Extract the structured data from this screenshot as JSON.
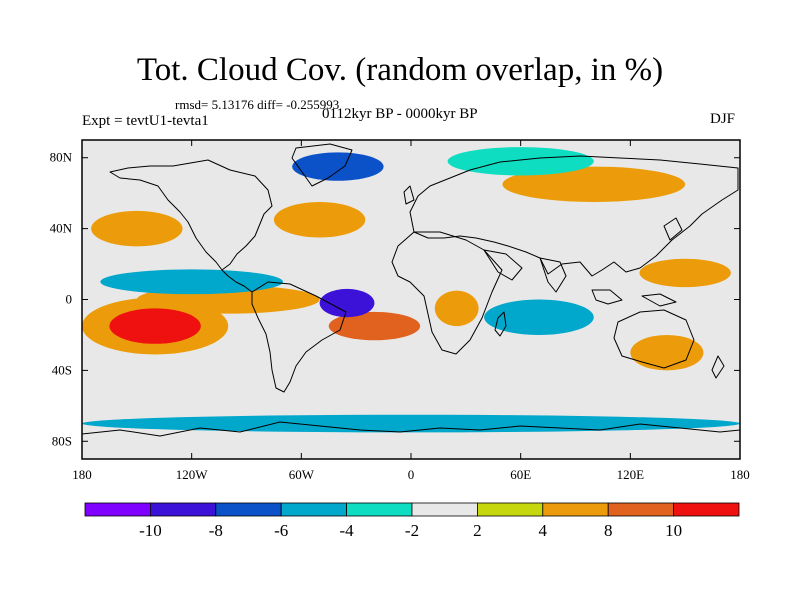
{
  "title": "Tot. Cloud Cov. (random overlap, in %)",
  "stats": "rmsd= 5.13176 diff= -0.255993",
  "experiment": "Expt = tevtU1-tevta1",
  "period": "0112kyr BP - 0000kyr BP",
  "season": "DJF",
  "map": {
    "projection": "cylindrical-equidistant",
    "lon_range": [
      -180,
      180
    ],
    "lat_range": [
      -90,
      90
    ],
    "lon_ticks": [
      {
        "value": -180,
        "label": "180"
      },
      {
        "value": -120,
        "label": "120W"
      },
      {
        "value": -60,
        "label": "60W"
      },
      {
        "value": 0,
        "label": "0"
      },
      {
        "value": 60,
        "label": "60E"
      },
      {
        "value": 120,
        "label": "120E"
      },
      {
        "value": 180,
        "label": "180"
      }
    ],
    "lat_ticks": [
      {
        "value": 80,
        "label": "80N"
      },
      {
        "value": 40,
        "label": "40N"
      },
      {
        "value": 0,
        "label": "0"
      },
      {
        "value": -40,
        "label": "40S"
      },
      {
        "value": -80,
        "label": "80S"
      }
    ],
    "anomaly_regions": [
      {
        "name": "central-south-pacific",
        "lon": -140,
        "lat": -15,
        "rlon": 25,
        "rlat": 10,
        "value": 10
      },
      {
        "name": "south-pacific-ring",
        "lon": -140,
        "lat": -15,
        "rlon": 40,
        "rlat": 16,
        "value": 6
      },
      {
        "name": "south-atlantic",
        "lon": -20,
        "lat": -15,
        "rlon": 25,
        "rlat": 8,
        "value": 9
      },
      {
        "name": "north-pacific",
        "lon": -150,
        "lat": 40,
        "rlon": 25,
        "rlat": 10,
        "value": 6
      },
      {
        "name": "north-atlantic",
        "lon": -50,
        "lat": 45,
        "rlon": 25,
        "rlat": 10,
        "value": 6
      },
      {
        "name": "west-pacific",
        "lon": 150,
        "lat": 15,
        "rlon": 25,
        "rlat": 8,
        "value": 6
      },
      {
        "name": "australia",
        "lon": 140,
        "lat": -30,
        "rlon": 20,
        "rlat": 10,
        "value": 5
      },
      {
        "name": "eastern-pacific",
        "lon": -100,
        "lat": 0,
        "rlon": 50,
        "rlat": 8,
        "value": 5
      },
      {
        "name": "central-africa",
        "lon": 25,
        "lat": -5,
        "rlon": 12,
        "rlat": 10,
        "value": 6
      },
      {
        "name": "eurasia",
        "lon": 100,
        "lat": 65,
        "rlon": 50,
        "rlat": 10,
        "value": 5
      },
      {
        "name": "equatorial-atlantic",
        "lon": -35,
        "lat": -2,
        "rlon": 15,
        "rlat": 8,
        "value": -10
      },
      {
        "name": "south-pacific-band",
        "lon": -120,
        "lat": 10,
        "rlon": 50,
        "rlat": 7,
        "value": -6
      },
      {
        "name": "indian-ocean",
        "lon": 70,
        "lat": -10,
        "rlon": 30,
        "rlat": 10,
        "value": -5
      },
      {
        "name": "greenland",
        "lon": -40,
        "lat": 75,
        "rlon": 25,
        "rlat": 8,
        "value": -7
      },
      {
        "name": "siberia",
        "lon": 60,
        "lat": 78,
        "rlon": 40,
        "rlat": 8,
        "value": -4
      },
      {
        "name": "southern-ocean-belt",
        "lon": 0,
        "lat": -70,
        "rlon": 180,
        "rlat": 5,
        "value": -5
      }
    ]
  },
  "colorbar": {
    "labels": [
      "-10",
      "-8",
      "-6",
      "-4",
      "-2",
      "2",
      "4",
      "8",
      "10"
    ],
    "bins": [
      {
        "color": "#7f00ff"
      },
      {
        "color": "#3c12d8"
      },
      {
        "color": "#0b52c9"
      },
      {
        "color": "#02a7cc"
      },
      {
        "color": "#0fddc1"
      },
      {
        "color": "#e8e8e8"
      },
      {
        "color": "#c7d70e"
      },
      {
        "color": "#ec9c0a"
      },
      {
        "color": "#e0621e"
      },
      {
        "color": "#ef1010"
      }
    ]
  },
  "colors": {
    "background": "#e8e8e8",
    "coastline": "#000000"
  }
}
